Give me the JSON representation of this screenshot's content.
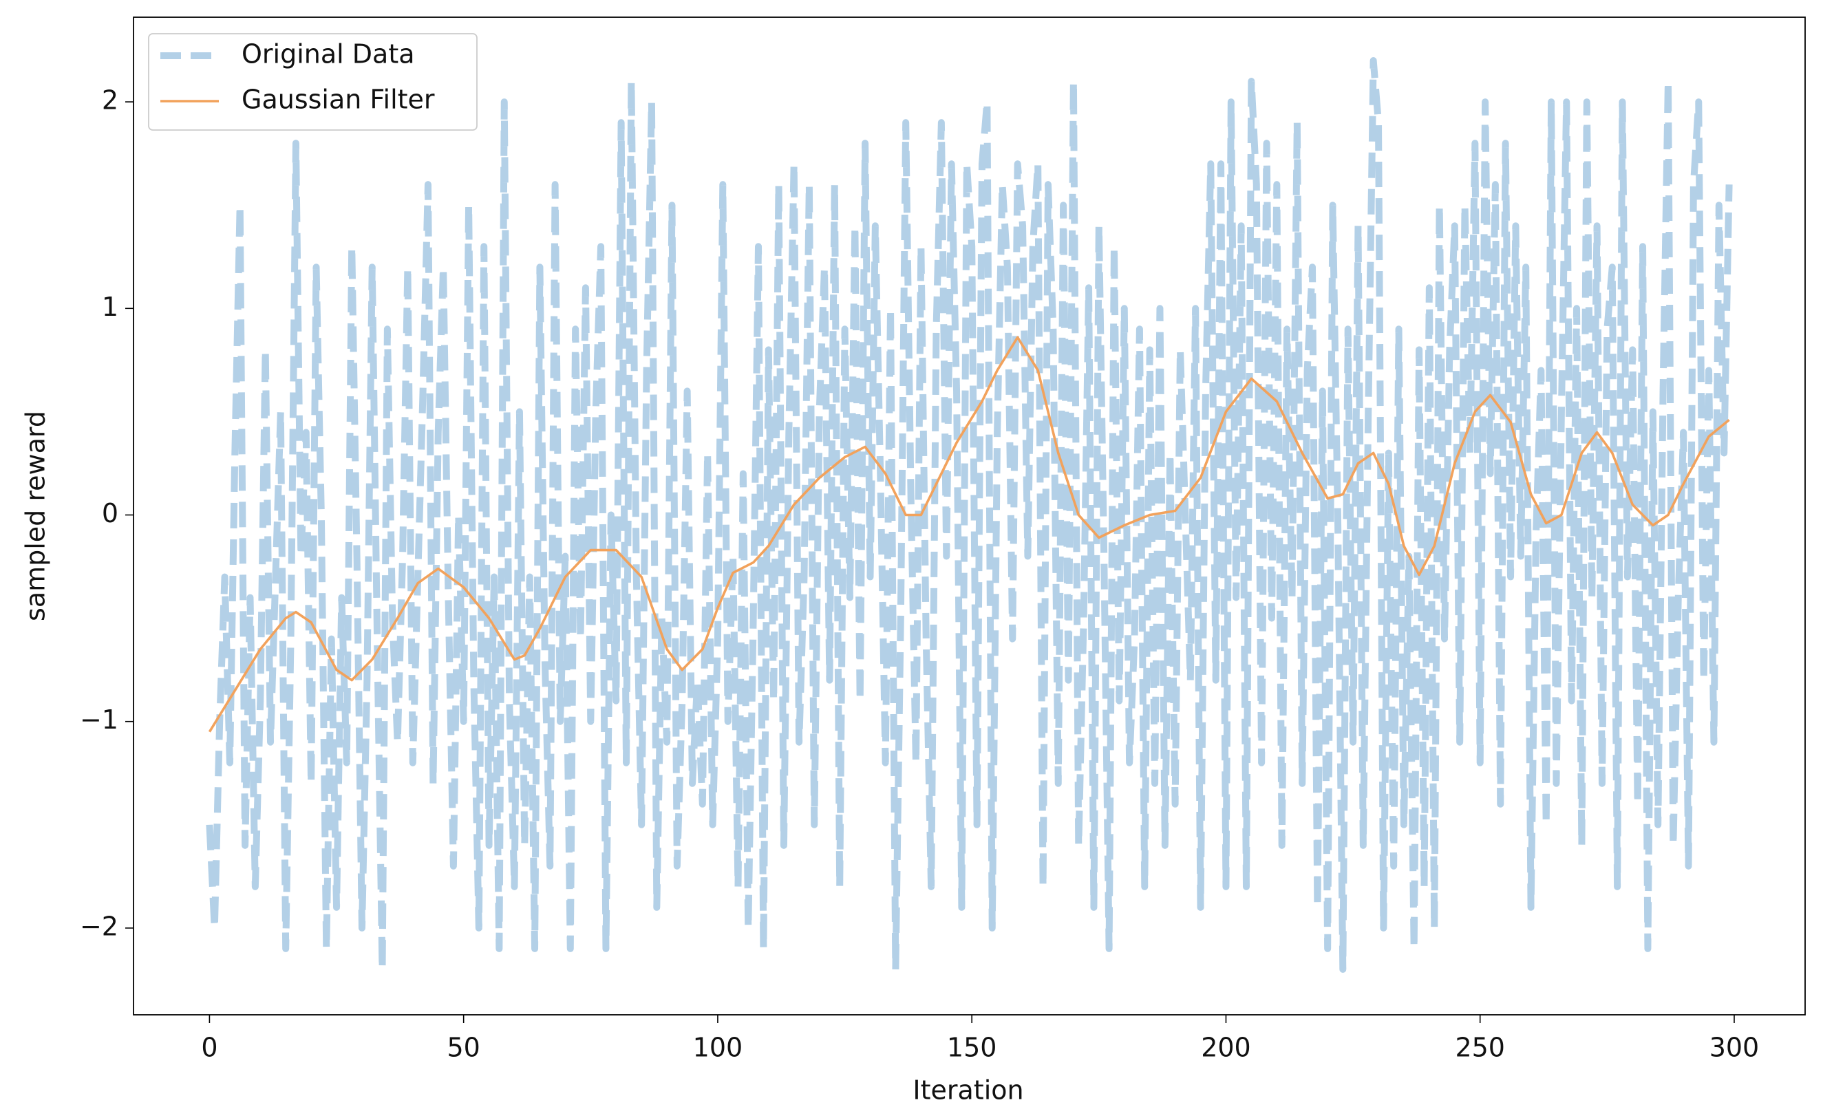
{
  "chart_data": {
    "type": "line",
    "x_label": "Iteration",
    "y_label": "sampled reward",
    "xlim": [
      -14.95,
      313.95
    ],
    "ylim": [
      -2.42,
      2.41
    ],
    "xticks": [
      0,
      50,
      100,
      150,
      200,
      250,
      300
    ],
    "yticks": [
      {
        "value": -2,
        "label": "−2"
      },
      {
        "value": -1,
        "label": "−1"
      },
      0,
      1,
      2
    ],
    "legend": "upper left",
    "series": [
      {
        "name": "Original Data",
        "color": "#b3d0e7",
        "style": "dashed",
        "x": [
          0,
          1,
          2,
          3,
          4,
          5,
          6,
          7,
          8,
          9,
          10,
          11,
          12,
          13,
          14,
          15,
          16,
          17,
          18,
          19,
          20,
          21,
          22,
          23,
          24,
          25,
          26,
          27,
          28,
          29,
          30,
          31,
          32,
          33,
          34,
          35,
          36,
          37,
          38,
          39,
          40,
          41,
          42,
          43,
          44,
          45,
          46,
          47,
          48,
          49,
          50,
          51,
          52,
          53,
          54,
          55,
          56,
          57,
          58,
          59,
          60,
          61,
          62,
          63,
          64,
          65,
          66,
          67,
          68,
          69,
          70,
          71,
          72,
          73,
          74,
          75,
          76,
          77,
          78,
          79,
          80,
          81,
          82,
          83,
          84,
          85,
          86,
          87,
          88,
          89,
          90,
          91,
          92,
          93,
          94,
          95,
          96,
          97,
          98,
          99,
          100,
          101,
          102,
          103,
          104,
          105,
          106,
          107,
          108,
          109,
          110,
          111,
          112,
          113,
          114,
          115,
          116,
          117,
          118,
          119,
          120,
          121,
          122,
          123,
          124,
          125,
          126,
          127,
          128,
          129,
          130,
          131,
          132,
          133,
          134,
          135,
          136,
          137,
          138,
          139,
          140,
          141,
          142,
          143,
          144,
          145,
          146,
          147,
          148,
          149,
          150,
          151,
          152,
          153,
          154,
          155,
          156,
          157,
          158,
          159,
          160,
          161,
          162,
          163,
          164,
          165,
          166,
          167,
          168,
          169,
          170,
          171,
          172,
          173,
          174,
          175,
          176,
          177,
          178,
          179,
          180,
          181,
          182,
          183,
          184,
          185,
          186,
          187,
          188,
          189,
          190,
          191,
          192,
          193,
          194,
          195,
          196,
          197,
          198,
          199,
          200,
          201,
          202,
          203,
          204,
          205,
          206,
          207,
          208,
          209,
          210,
          211,
          212,
          213,
          214,
          215,
          216,
          217,
          218,
          219,
          220,
          221,
          222,
          223,
          224,
          225,
          226,
          227,
          228,
          229,
          230,
          231,
          232,
          233,
          234,
          235,
          236,
          237,
          238,
          239,
          240,
          241,
          242,
          243,
          244,
          245,
          246,
          247,
          248,
          249,
          250,
          251,
          252,
          253,
          254,
          255,
          256,
          257,
          258,
          259,
          260,
          261,
          262,
          263,
          264,
          265,
          266,
          267,
          268,
          269,
          270,
          271,
          272,
          273,
          274,
          275,
          276,
          277,
          278,
          279,
          280,
          281,
          282,
          283,
          284,
          285,
          286,
          287,
          288,
          289,
          290,
          291,
          292,
          293,
          294,
          295,
          296,
          297,
          298,
          299
        ],
        "values": [
          -1.5,
          -2.0,
          -1.0,
          -0.3,
          -1.2,
          0.3,
          1.5,
          -1.6,
          -0.4,
          -1.8,
          -0.9,
          0.8,
          -1.1,
          -0.3,
          0.5,
          -2.1,
          -0.6,
          1.8,
          -0.2,
          0.4,
          -1.3,
          1.2,
          0.0,
          -2.1,
          -0.6,
          -1.9,
          -0.4,
          -1.2,
          1.3,
          -0.2,
          -2.0,
          -0.8,
          1.2,
          -0.6,
          -2.2,
          0.9,
          -0.5,
          -1.1,
          -0.2,
          1.2,
          -1.2,
          -0.3,
          0.6,
          1.6,
          -1.3,
          0.4,
          1.2,
          -0.4,
          -1.7,
          0.0,
          -1.0,
          1.5,
          -0.8,
          -2.0,
          1.3,
          -1.6,
          -0.3,
          -2.1,
          2.0,
          -0.9,
          -1.8,
          0.5,
          -1.6,
          -0.3,
          -2.1,
          1.2,
          -0.7,
          -1.7,
          1.6,
          -1.0,
          -0.2,
          -2.1,
          0.9,
          -0.6,
          1.1,
          -1.0,
          0.5,
          1.3,
          -2.1,
          0.0,
          -0.9,
          1.9,
          -1.2,
          2.1,
          -0.3,
          -1.5,
          0.7,
          2.0,
          -1.9,
          -0.5,
          -1.1,
          1.5,
          -1.7,
          -0.9,
          0.6,
          -1.3,
          -0.8,
          -1.4,
          0.3,
          -1.5,
          -0.6,
          1.6,
          -1.0,
          -0.2,
          -1.8,
          0.2,
          -2.0,
          -0.5,
          1.3,
          -2.1,
          0.8,
          -0.9,
          1.6,
          -1.6,
          0.4,
          1.7,
          -1.1,
          -0.3,
          1.6,
          -1.5,
          0.5,
          1.2,
          -0.8,
          1.6,
          -1.8,
          0.9,
          -0.4,
          1.4,
          -0.9,
          1.8,
          -0.3,
          1.4,
          0.2,
          -1.2,
          1.0,
          -2.2,
          -0.5,
          1.9,
          0.1,
          -1.2,
          1.3,
          -0.6,
          -1.8,
          0.9,
          1.9,
          -0.2,
          1.7,
          0.6,
          -1.9,
          1.7,
          1.3,
          -1.5,
          1.7,
          2.0,
          -2.0,
          0.4,
          1.6,
          1.2,
          -0.6,
          1.7,
          1.4,
          -0.2,
          1.3,
          1.7,
          -1.8,
          1.6,
          0.9,
          -1.3,
          1.5,
          -0.8,
          2.1,
          -1.6,
          -0.5,
          1.1,
          -1.9,
          1.4,
          -0.2,
          -2.1,
          1.3,
          -0.9,
          1.0,
          -1.2,
          -0.6,
          0.9,
          -1.8,
          0.8,
          -1.3,
          1.0,
          -1.6,
          0.3,
          -1.4,
          0.8,
          0.0,
          -0.8,
          1.0,
          -1.9,
          0.6,
          1.7,
          -0.8,
          1.7,
          -1.8,
          2.0,
          -0.4,
          1.4,
          -1.8,
          2.1,
          1.6,
          -1.2,
          1.8,
          -0.5,
          1.6,
          -1.6,
          0.9,
          -0.4,
          1.9,
          -1.3,
          0.7,
          1.2,
          -1.9,
          0.6,
          -2.1,
          1.5,
          0.0,
          -2.2,
          0.9,
          -1.1,
          1.4,
          -1.6,
          0.5,
          2.2,
          1.9,
          -2.0,
          0.3,
          -1.7,
          0.9,
          -1.5,
          -0.2,
          -2.1,
          0.8,
          -1.8,
          1.1,
          -2.0,
          1.5,
          -0.6,
          0.8,
          1.4,
          -1.1,
          1.5,
          0.3,
          1.8,
          -1.2,
          2.0,
          0.2,
          1.6,
          -1.4,
          1.8,
          -0.3,
          1.4,
          -0.2,
          1.2,
          -1.9,
          -0.1,
          0.7,
          -1.5,
          2.0,
          -1.3,
          0.5,
          2.0,
          -0.9,
          1.0,
          -1.6,
          2.0,
          -0.4,
          1.4,
          -1.3,
          0.9,
          1.2,
          -1.8,
          2.0,
          -0.3,
          0.8,
          -1.4,
          1.3,
          -2.1,
          0.5,
          -1.5,
          0.6,
          2.1,
          -1.6,
          -0.4,
          0.4,
          -1.7,
          1.6,
          2.0,
          -0.8,
          0.7,
          -1.1,
          1.5,
          0.3,
          1.6
        ]
      },
      {
        "name": "Gaussian Filter",
        "color": "#f2a25c",
        "style": "solid",
        "x": [
          0,
          5,
          10,
          15,
          17,
          20,
          25,
          28,
          32,
          37,
          41,
          45,
          50,
          55,
          60,
          62,
          65,
          70,
          75,
          80,
          85,
          90,
          93,
          97,
          100,
          103,
          107,
          110,
          115,
          120,
          125,
          129,
          133,
          137,
          140,
          143,
          147,
          152,
          155,
          159,
          163,
          167,
          171,
          175,
          180,
          185,
          190,
          195,
          200,
          205,
          210,
          215,
          220,
          223,
          226,
          229,
          232,
          235,
          238,
          241,
          245,
          249,
          252,
          256,
          260,
          263,
          266,
          270,
          273,
          276,
          280,
          284,
          287,
          290,
          295,
          299
        ],
        "values": [
          -1.05,
          -0.85,
          -0.65,
          -0.5,
          -0.47,
          -0.52,
          -0.75,
          -0.8,
          -0.7,
          -0.5,
          -0.33,
          -0.26,
          -0.35,
          -0.5,
          -0.7,
          -0.68,
          -0.55,
          -0.3,
          -0.17,
          -0.17,
          -0.3,
          -0.65,
          -0.75,
          -0.65,
          -0.45,
          -0.28,
          -0.23,
          -0.15,
          0.05,
          0.18,
          0.28,
          0.33,
          0.2,
          0.0,
          0.0,
          0.15,
          0.35,
          0.55,
          0.7,
          0.86,
          0.7,
          0.3,
          0.0,
          -0.11,
          -0.05,
          0.0,
          0.02,
          0.18,
          0.5,
          0.66,
          0.55,
          0.3,
          0.08,
          0.1,
          0.25,
          0.3,
          0.15,
          -0.15,
          -0.29,
          -0.15,
          0.25,
          0.5,
          0.58,
          0.45,
          0.1,
          -0.04,
          0.0,
          0.3,
          0.4,
          0.3,
          0.05,
          -0.05,
          0.0,
          0.15,
          0.38,
          0.46
        ]
      }
    ]
  }
}
